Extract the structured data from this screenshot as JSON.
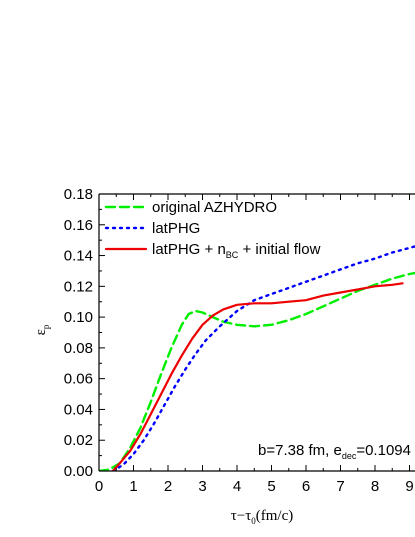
{
  "chart_data": {
    "type": "line",
    "xlabel": {
      "main": "τ−τ",
      "sub": "0",
      "unit": "(fm/c)"
    },
    "ylabel": {
      "main": "ε",
      "sub": "p"
    },
    "xlim": [
      0,
      9.5
    ],
    "ylim": [
      0,
      0.18
    ],
    "xticks": [
      "0",
      "1",
      "2",
      "3",
      "4",
      "5",
      "6",
      "7",
      "8",
      "9"
    ],
    "yticks": [
      "0.00",
      "0.02",
      "0.04",
      "0.06",
      "0.08",
      "0.10",
      "0.12",
      "0.14",
      "0.16",
      "0.18"
    ],
    "annotation": {
      "before": "b=7.38 fm, e",
      "sub": "dec",
      "after": "=0.1094 Ge"
    },
    "legend_position": "top-left",
    "series": [
      {
        "name": "original AZHYDRO",
        "color": "#00ee00",
        "style": "dashed",
        "x": [
          0.0,
          0.3,
          0.6,
          0.9,
          1.2,
          1.5,
          1.8,
          2.1,
          2.4,
          2.6,
          2.8,
          3.0,
          3.3,
          3.6,
          4.0,
          4.5,
          5.0,
          5.5,
          6.0,
          6.5,
          7.0,
          7.5,
          8.0,
          8.5,
          9.0,
          9.5
        ],
        "y": [
          0.0,
          0.001,
          0.005,
          0.015,
          0.028,
          0.045,
          0.063,
          0.08,
          0.095,
          0.102,
          0.104,
          0.103,
          0.1,
          0.097,
          0.095,
          0.094,
          0.095,
          0.098,
          0.102,
          0.107,
          0.112,
          0.117,
          0.121,
          0.125,
          0.128,
          0.13
        ]
      },
      {
        "name": "latPHG",
        "color": "#0000ff",
        "style": "dotted",
        "x": [
          0.4,
          0.7,
          1.0,
          1.3,
          1.6,
          1.9,
          2.2,
          2.5,
          2.8,
          3.1,
          3.5,
          4.0,
          4.5,
          5.0,
          5.5,
          6.0,
          6.5,
          7.0,
          7.5,
          8.0,
          8.5,
          9.0,
          9.5
        ],
        "y": [
          0.0,
          0.004,
          0.011,
          0.02,
          0.031,
          0.043,
          0.055,
          0.066,
          0.076,
          0.085,
          0.094,
          0.104,
          0.111,
          0.115,
          0.119,
          0.123,
          0.127,
          0.131,
          0.135,
          0.138,
          0.142,
          0.145,
          0.148
        ]
      },
      {
        "name": "latPHG + n",
        "name_sub": "BC",
        "name_after": " + initial flow",
        "color": "#ee0000",
        "style": "solid",
        "x": [
          0.4,
          0.6,
          0.9,
          1.2,
          1.5,
          1.8,
          2.1,
          2.4,
          2.7,
          3.0,
          3.3,
          3.6,
          4.0,
          4.5,
          5.0,
          5.5,
          6.0,
          6.5,
          7.0,
          7.5,
          8.0,
          8.5,
          8.8
        ],
        "y": [
          0.0,
          0.005,
          0.013,
          0.024,
          0.037,
          0.05,
          0.063,
          0.075,
          0.086,
          0.095,
          0.101,
          0.105,
          0.108,
          0.109,
          0.109,
          0.11,
          0.111,
          0.114,
          0.116,
          0.118,
          0.12,
          0.121,
          0.122
        ]
      }
    ]
  }
}
